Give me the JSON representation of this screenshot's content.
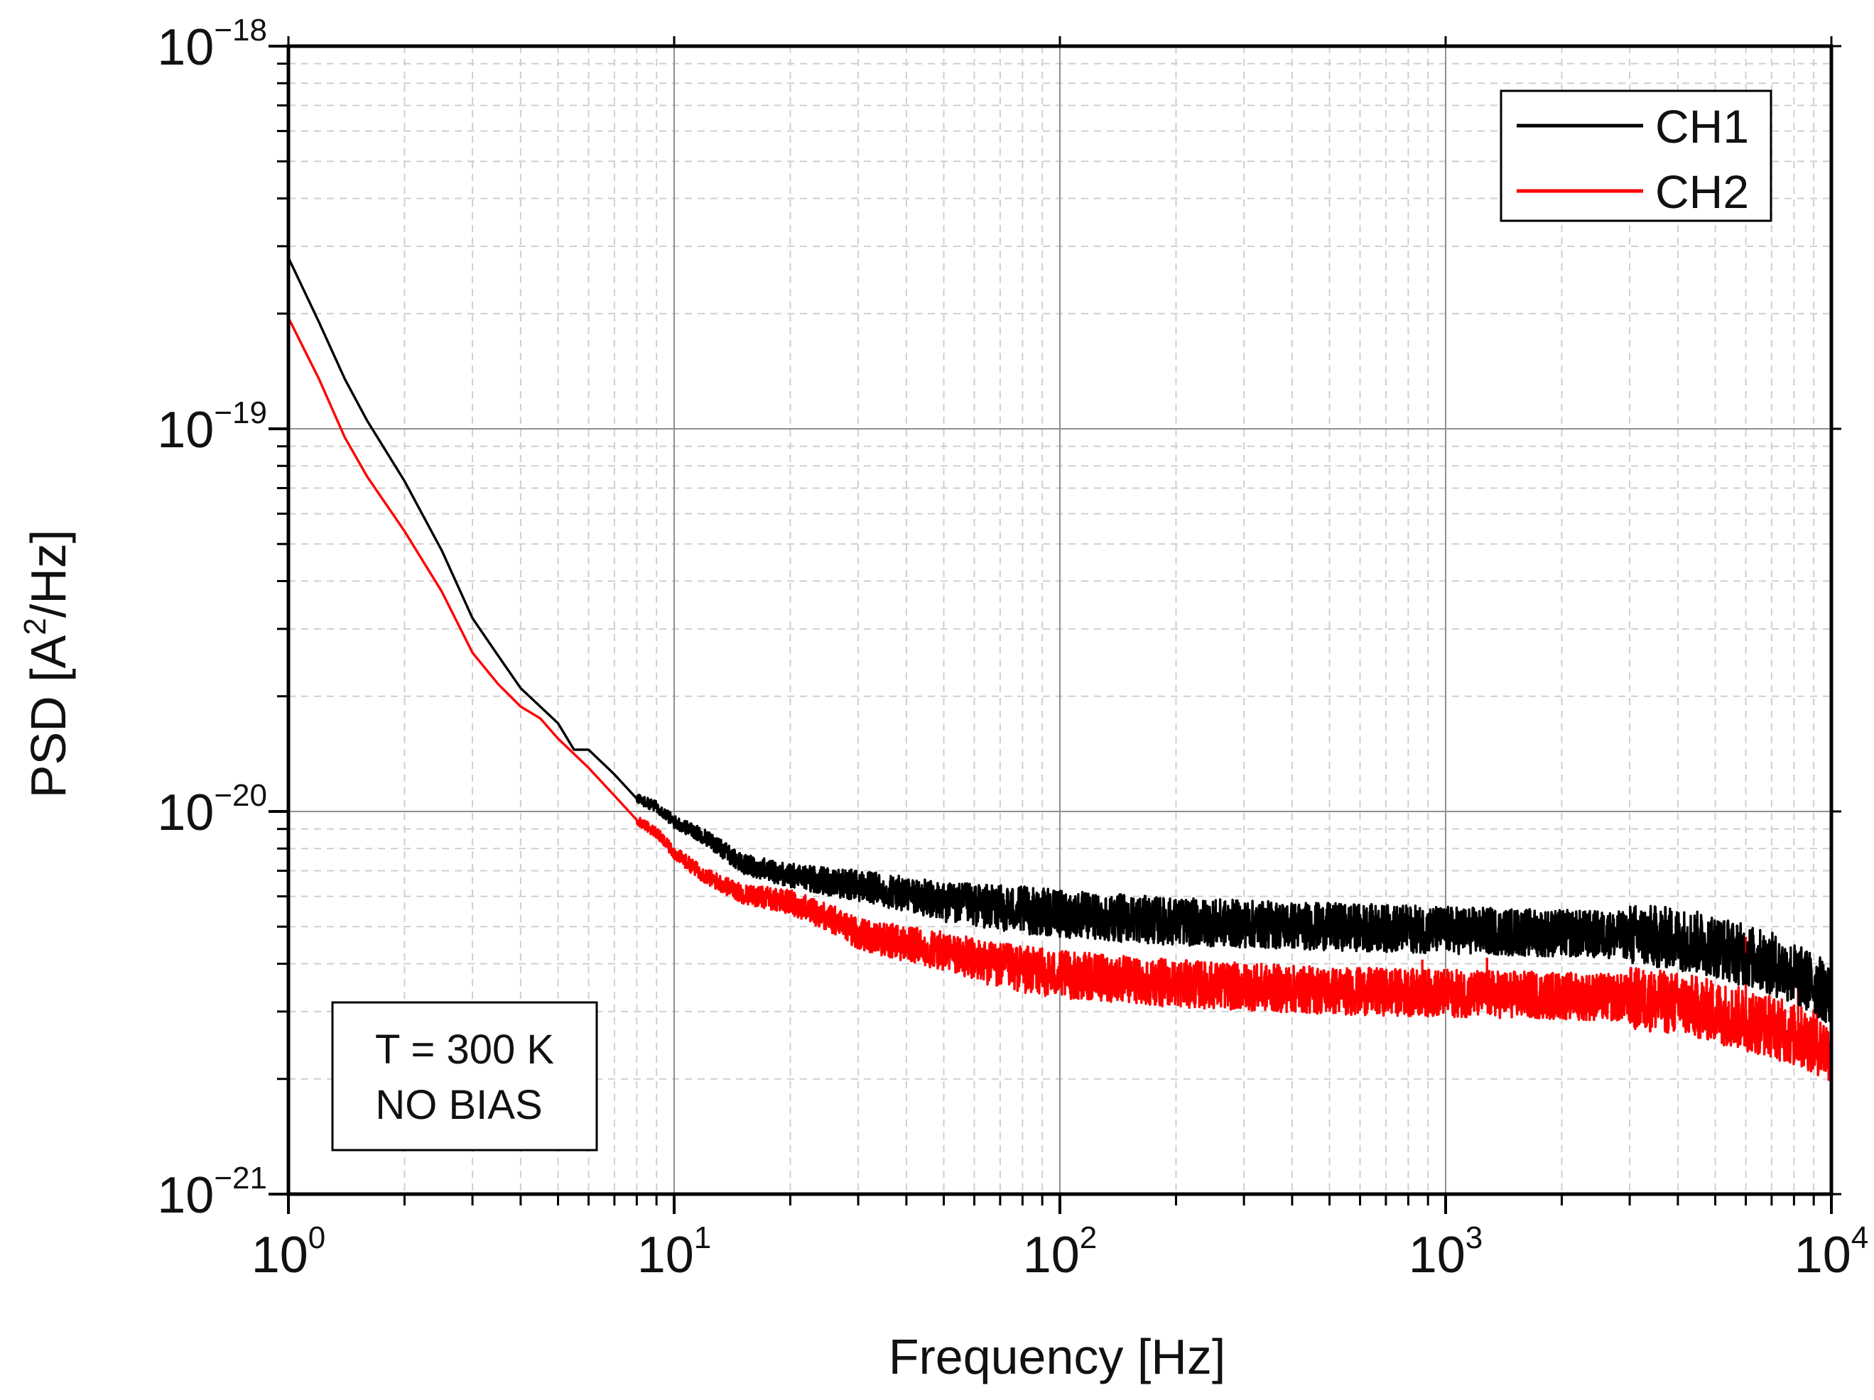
{
  "chart_data": {
    "type": "line",
    "title": "",
    "xlabel": "Frequency [Hz]",
    "ylabel": "PSD [A²/Hz]",
    "ylabel_parts": [
      "PSD [A",
      "2",
      "/Hz]"
    ],
    "xscale": "log",
    "yscale": "log",
    "xlim": [
      1,
      10000
    ],
    "ylim": [
      1e-21,
      1e-18
    ],
    "grid": true,
    "legend_position": "top-right",
    "annotation": {
      "position": "bottom-left",
      "lines": [
        "T = 300 K",
        "NO BIAS"
      ]
    },
    "x_ticks": [
      {
        "value": 1,
        "base": "10",
        "exp": "0"
      },
      {
        "value": 10,
        "base": "10",
        "exp": "1"
      },
      {
        "value": 100,
        "base": "10",
        "exp": "2"
      },
      {
        "value": 1000,
        "base": "10",
        "exp": "3"
      },
      {
        "value": 10000,
        "base": "10",
        "exp": "4"
      }
    ],
    "y_ticks": [
      {
        "value": 1e-18,
        "base": "10",
        "exp": "−18"
      },
      {
        "value": 1e-19,
        "base": "10",
        "exp": "−19"
      },
      {
        "value": 1e-20,
        "base": "10",
        "exp": "−20"
      },
      {
        "value": 1e-21,
        "base": "10",
        "exp": "−21"
      }
    ],
    "series": [
      {
        "name": "CH1",
        "color": "#000000",
        "x": [
          1,
          1.2,
          1.4,
          1.6,
          2,
          2.5,
          3,
          3.5,
          4,
          5,
          5.5,
          6,
          7,
          8,
          9,
          10,
          12,
          15,
          20,
          30,
          50,
          100,
          200,
          500,
          1000,
          2000,
          3000,
          4000,
          5000,
          6000,
          7000,
          8000,
          9000,
          10000
        ],
        "y": [
          2.8e-19,
          1.9e-19,
          1.35e-19,
          1.05e-19,
          7.3e-20,
          4.8e-20,
          3.2e-20,
          2.55e-20,
          2.1e-20,
          1.7e-20,
          1.45e-20,
          1.45e-20,
          1.25e-20,
          1.08e-20,
          1.03e-20,
          9.4e-21,
          8.6e-21,
          7.3e-21,
          6.8e-21,
          6.4e-21,
          5.8e-21,
          5.4e-21,
          5.15e-21,
          5e-21,
          4.9e-21,
          4.8e-21,
          4.75e-21,
          4.65e-21,
          4.45e-21,
          4.2e-21,
          4e-21,
          3.75e-21,
          3.55e-21,
          3.3e-21
        ],
        "spikes": []
      },
      {
        "name": "CH2",
        "color": "#ff0000",
        "x": [
          1,
          1.2,
          1.4,
          1.6,
          2,
          2.5,
          3,
          3.5,
          4,
          4.5,
          5,
          6,
          7,
          8,
          9,
          10,
          12,
          15,
          20,
          25,
          30,
          40,
          50,
          70,
          100,
          200,
          500,
          1000,
          2000,
          3000,
          4000,
          5000,
          6000,
          7000,
          8000,
          9000,
          10000
        ],
        "y": [
          1.95e-19,
          1.35e-19,
          9.5e-20,
          7.5e-20,
          5.4e-20,
          3.75e-20,
          2.6e-20,
          2.15e-20,
          1.88e-20,
          1.75e-20,
          1.55e-20,
          1.3e-20,
          1.1e-20,
          9.5e-21,
          8.8e-21,
          7.8e-21,
          6.8e-21,
          6.1e-21,
          5.8e-21,
          5.3e-21,
          4.8e-21,
          4.5e-21,
          4.3e-21,
          3.95e-21,
          3.75e-21,
          3.55e-21,
          3.4e-21,
          3.35e-21,
          3.3e-21,
          3.25e-21,
          3.15e-21,
          3e-21,
          2.85e-21,
          2.75e-21,
          2.6e-21,
          2.5e-21,
          2.35e-21
        ],
        "spikes": [
          {
            "x": 870,
            "y": 4.1e-21
          },
          {
            "x": 1280,
            "y": 4.15e-21
          },
          {
            "x": 6000,
            "y": 4.7e-21
          },
          {
            "x": 8200,
            "y": 3.75e-21
          }
        ]
      }
    ]
  }
}
